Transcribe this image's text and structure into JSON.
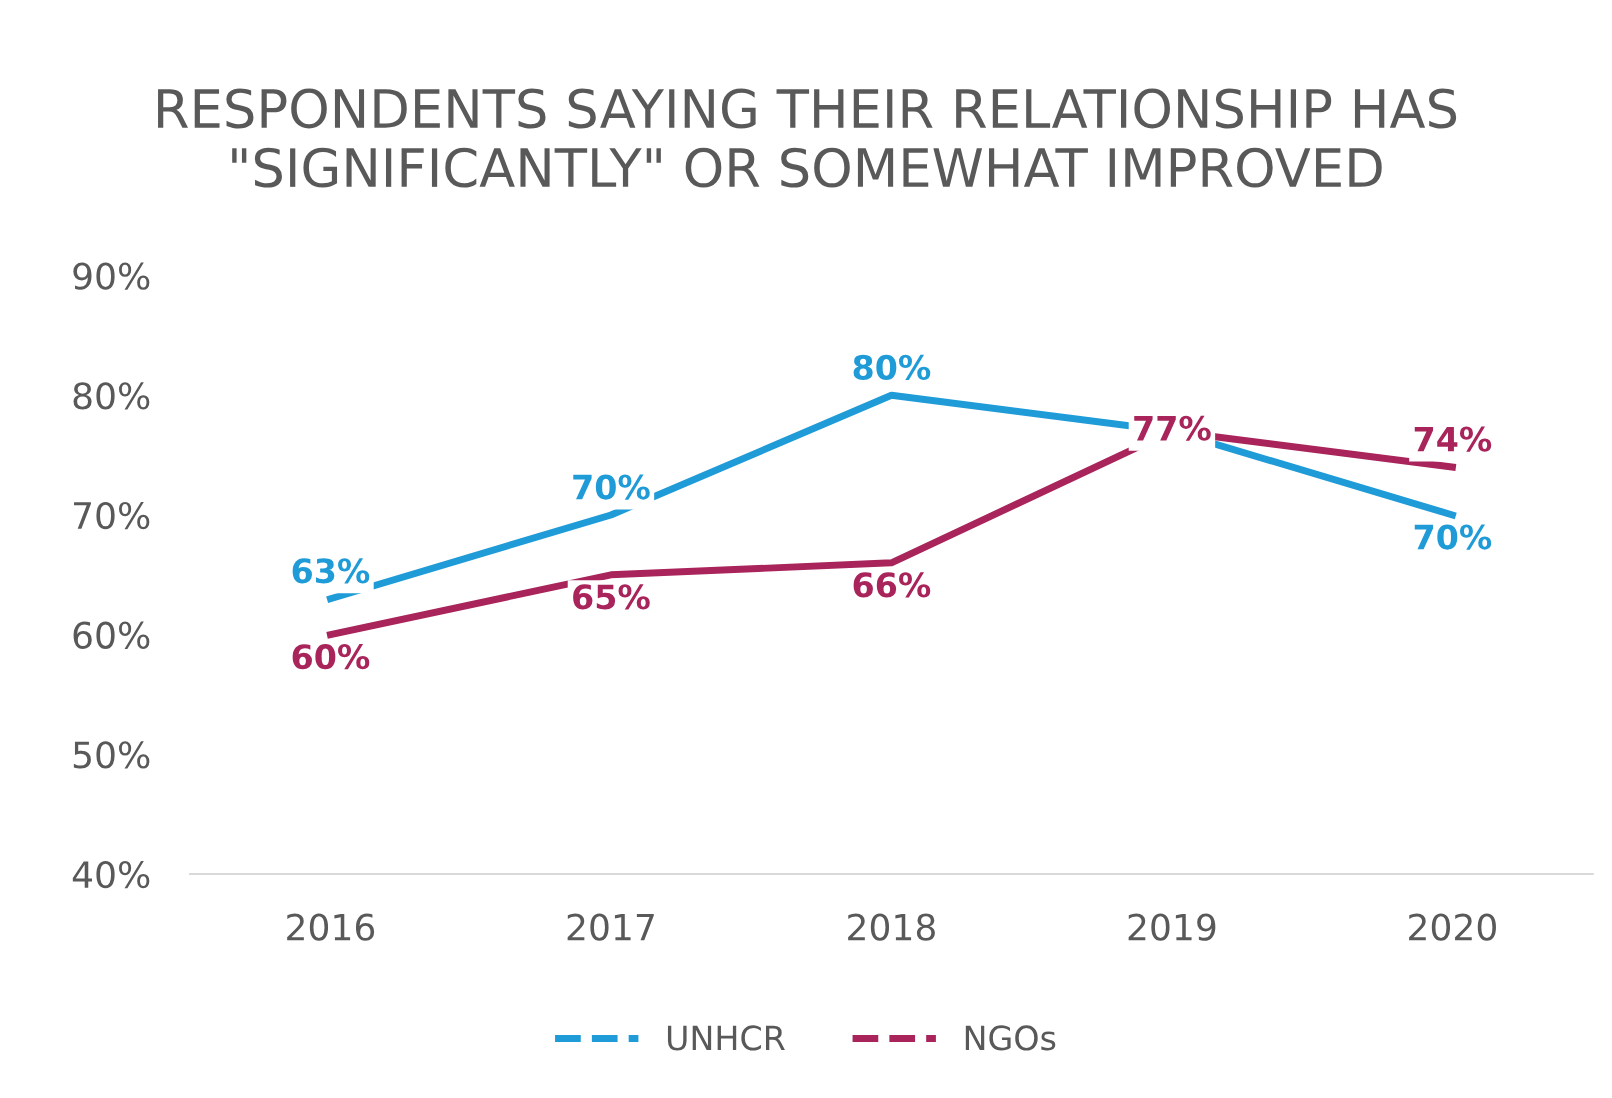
{
  "chart_data": {
    "type": "line",
    "title": "RESPONDENTS SAYING THEIR RELATIONSHIP HAS \"SIGNIFICANTLY\" OR SOMEWHAT IMPROVED",
    "categories": [
      "2016",
      "2017",
      "2018",
      "2019",
      "2020"
    ],
    "series": [
      {
        "name": "UNHCR",
        "color": "#1f9bd7",
        "values": [
          63,
          70,
          80,
          77,
          70
        ],
        "value_labels": [
          "63%",
          "70%",
          "80%",
          null,
          "70%"
        ]
      },
      {
        "name": "NGOs",
        "color": "#a8245a",
        "values": [
          60,
          65,
          66,
          77,
          74
        ],
        "value_labels": [
          "60%",
          "65%",
          "66%",
          "77%",
          "74%"
        ]
      }
    ],
    "ylim": [
      40,
      90
    ],
    "yticks": [
      {
        "value": 40,
        "label": "40%"
      },
      {
        "value": 50,
        "label": "50%"
      },
      {
        "value": 60,
        "label": "60%"
      },
      {
        "value": 70,
        "label": "70%"
      },
      {
        "value": 80,
        "label": "80%"
      },
      {
        "value": 90,
        "label": "90%"
      }
    ],
    "grid": false,
    "legend": "bottom",
    "marker": "none",
    "line_style": "solid"
  }
}
